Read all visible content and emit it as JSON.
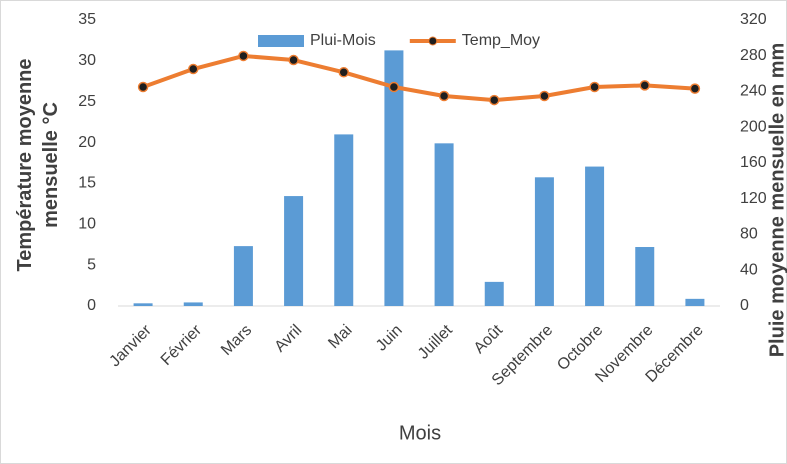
{
  "chart_data": {
    "type": "bar_line",
    "categories": [
      "Janvier",
      "Février",
      "Mars",
      "Avril",
      "Mai",
      "Juin",
      "Juillet",
      "Août",
      "Septembre",
      "Octobre",
      "Novembre",
      "Décembre"
    ],
    "series": [
      {
        "name": "Plui-Mois",
        "type": "bar",
        "axis": "y2",
        "color": "#5b9bd5",
        "values": [
          3,
          4,
          67,
          123,
          192,
          286,
          182,
          27,
          144,
          156,
          66,
          8
        ]
      },
      {
        "name": "Temp_Moy",
        "type": "line",
        "axis": "y",
        "color": "#ed7d31",
        "values": [
          26.8,
          29.0,
          30.6,
          30.1,
          28.6,
          26.8,
          25.7,
          25.2,
          25.7,
          26.8,
          27.0,
          26.6
        ]
      }
    ],
    "x_label": "Mois",
    "y_label": "Température moyenne mensuelle °C",
    "y2_label": "Pluie moyenne mensuelle en mm",
    "ylim": [
      0,
      35
    ],
    "yticks": [
      0,
      5,
      10,
      15,
      20,
      25,
      30,
      35
    ],
    "y2lim": [
      0,
      320
    ],
    "y2ticks": [
      0,
      40,
      80,
      120,
      160,
      200,
      240,
      280,
      320
    ],
    "legend": "top"
  }
}
